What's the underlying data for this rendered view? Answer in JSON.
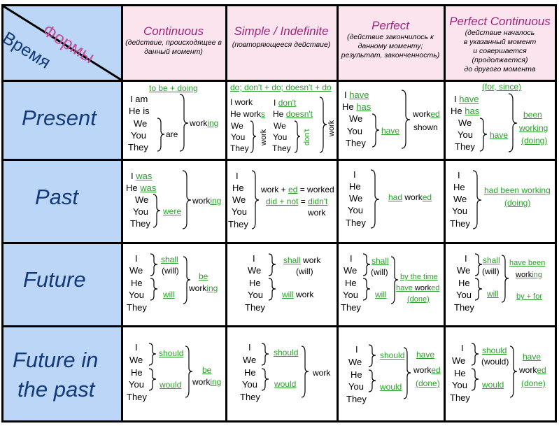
{
  "corner": {
    "forms": "Формы",
    "time": "Время"
  },
  "columns": [
    {
      "title": "Continuous",
      "desc": [
        "(действие, происходящее в",
        "данный момент)"
      ]
    },
    {
      "title": "Simple / Indefinite",
      "desc": [
        "(повторяющееся действие)"
      ]
    },
    {
      "title": "Perfect",
      "desc": [
        "(действие закончилось к",
        "данному моменту;",
        "результат, законченность)"
      ]
    },
    {
      "title": "Perfect Continuous",
      "desc": [
        "(действие началось",
        "в указанный момент",
        "и совершается (продолжается)",
        "до другого момента"
      ]
    }
  ],
  "rows": [
    "Present",
    "Past",
    "Future",
    "Future in",
    "the past"
  ],
  "pronouns": {
    "i": "I",
    "he": "He",
    "we": "We",
    "you": "You",
    "they": "They",
    "i_am": "I am",
    "he_is": "He is",
    "i_work": "I work",
    "he_works_he": "He ",
    "he_works_work": "work",
    "he_works_s": "s"
  },
  "cells": {
    "pres_cont": {
      "top": "to be + doing",
      "are": "are",
      "work": "work",
      "ing": "ing"
    },
    "pres_simple": {
      "top": "do; don't + do; doesn't + do",
      "i": "I",
      "dont": "don't",
      "he": "He",
      "doesnt": "doesn't",
      "work": "work",
      "dont_v": "don't"
    },
    "pres_perf": {
      "have": "have",
      "has": "has",
      "have2": "have",
      "work": "work",
      "ed": "ed",
      "shown": "shown"
    },
    "pres_pc": {
      "top": "(for, since)",
      "have": "have",
      "has": "has",
      "have2": "have",
      "been": "been",
      "working": "working",
      "doing": "(doing)"
    },
    "past_cont": {
      "was": "was",
      "was2": "was",
      "were": "were",
      "work": "work",
      "ing": "ing"
    },
    "past_simple": {
      "line1_a": "work + ",
      "line1_ed": "ed",
      "line1_b": " = worked",
      "line2_a": "did + not",
      "line2_b": " = ",
      "line2_c": "didn't",
      "line3": "work"
    },
    "past_perf": {
      "had": "had",
      "work": "work",
      "ed": "ed"
    },
    "past_pc": {
      "line1": "had been working",
      "line2": "(doing)"
    },
    "fut_cont": {
      "shall": "shall",
      "will_p": "(will)",
      "will": "will",
      "be": "be",
      "work": "work",
      "ing": "ing"
    },
    "fut_simple": {
      "shall": "shall",
      "work": " work",
      "will_p": "(will)",
      "will": "will",
      "work2": " work"
    },
    "fut_perf": {
      "shall": "shall",
      "will_p": "(will)",
      "will": "will",
      "l1": "by the time",
      "l2a": "have ",
      "l2b": "work",
      "l2c": "ed",
      "l3": "(done)"
    },
    "fut_pc": {
      "shall": "shall",
      "will_p": "(will)",
      "will": "will",
      "l1": "have been",
      "l2a": "work",
      "l2b": "ing",
      "l3": "by + for"
    },
    "fip_cont": {
      "should": "should",
      "would": "would",
      "be": "be",
      "work": "work",
      "ing": "ing"
    },
    "fip_simple": {
      "should": "should",
      "would": "would",
      "work": "work"
    },
    "fip_perf": {
      "should": "should",
      "would": "would",
      "l1": "have",
      "l2a": "work",
      "l2b": "ed",
      "l3": "(done)"
    },
    "fip_pc": {
      "should": "should",
      "would_p": "(would)",
      "would": "would",
      "l1": "have",
      "l2a": "work",
      "l2b": "ed",
      "l3": "(done)"
    }
  },
  "colors": {
    "header_bg": "#fce4ef",
    "side_bg": "#bcd6f7",
    "green": "#2ca02c",
    "title_magenta": "#a0257a",
    "time_blue": "#123a7a"
  }
}
